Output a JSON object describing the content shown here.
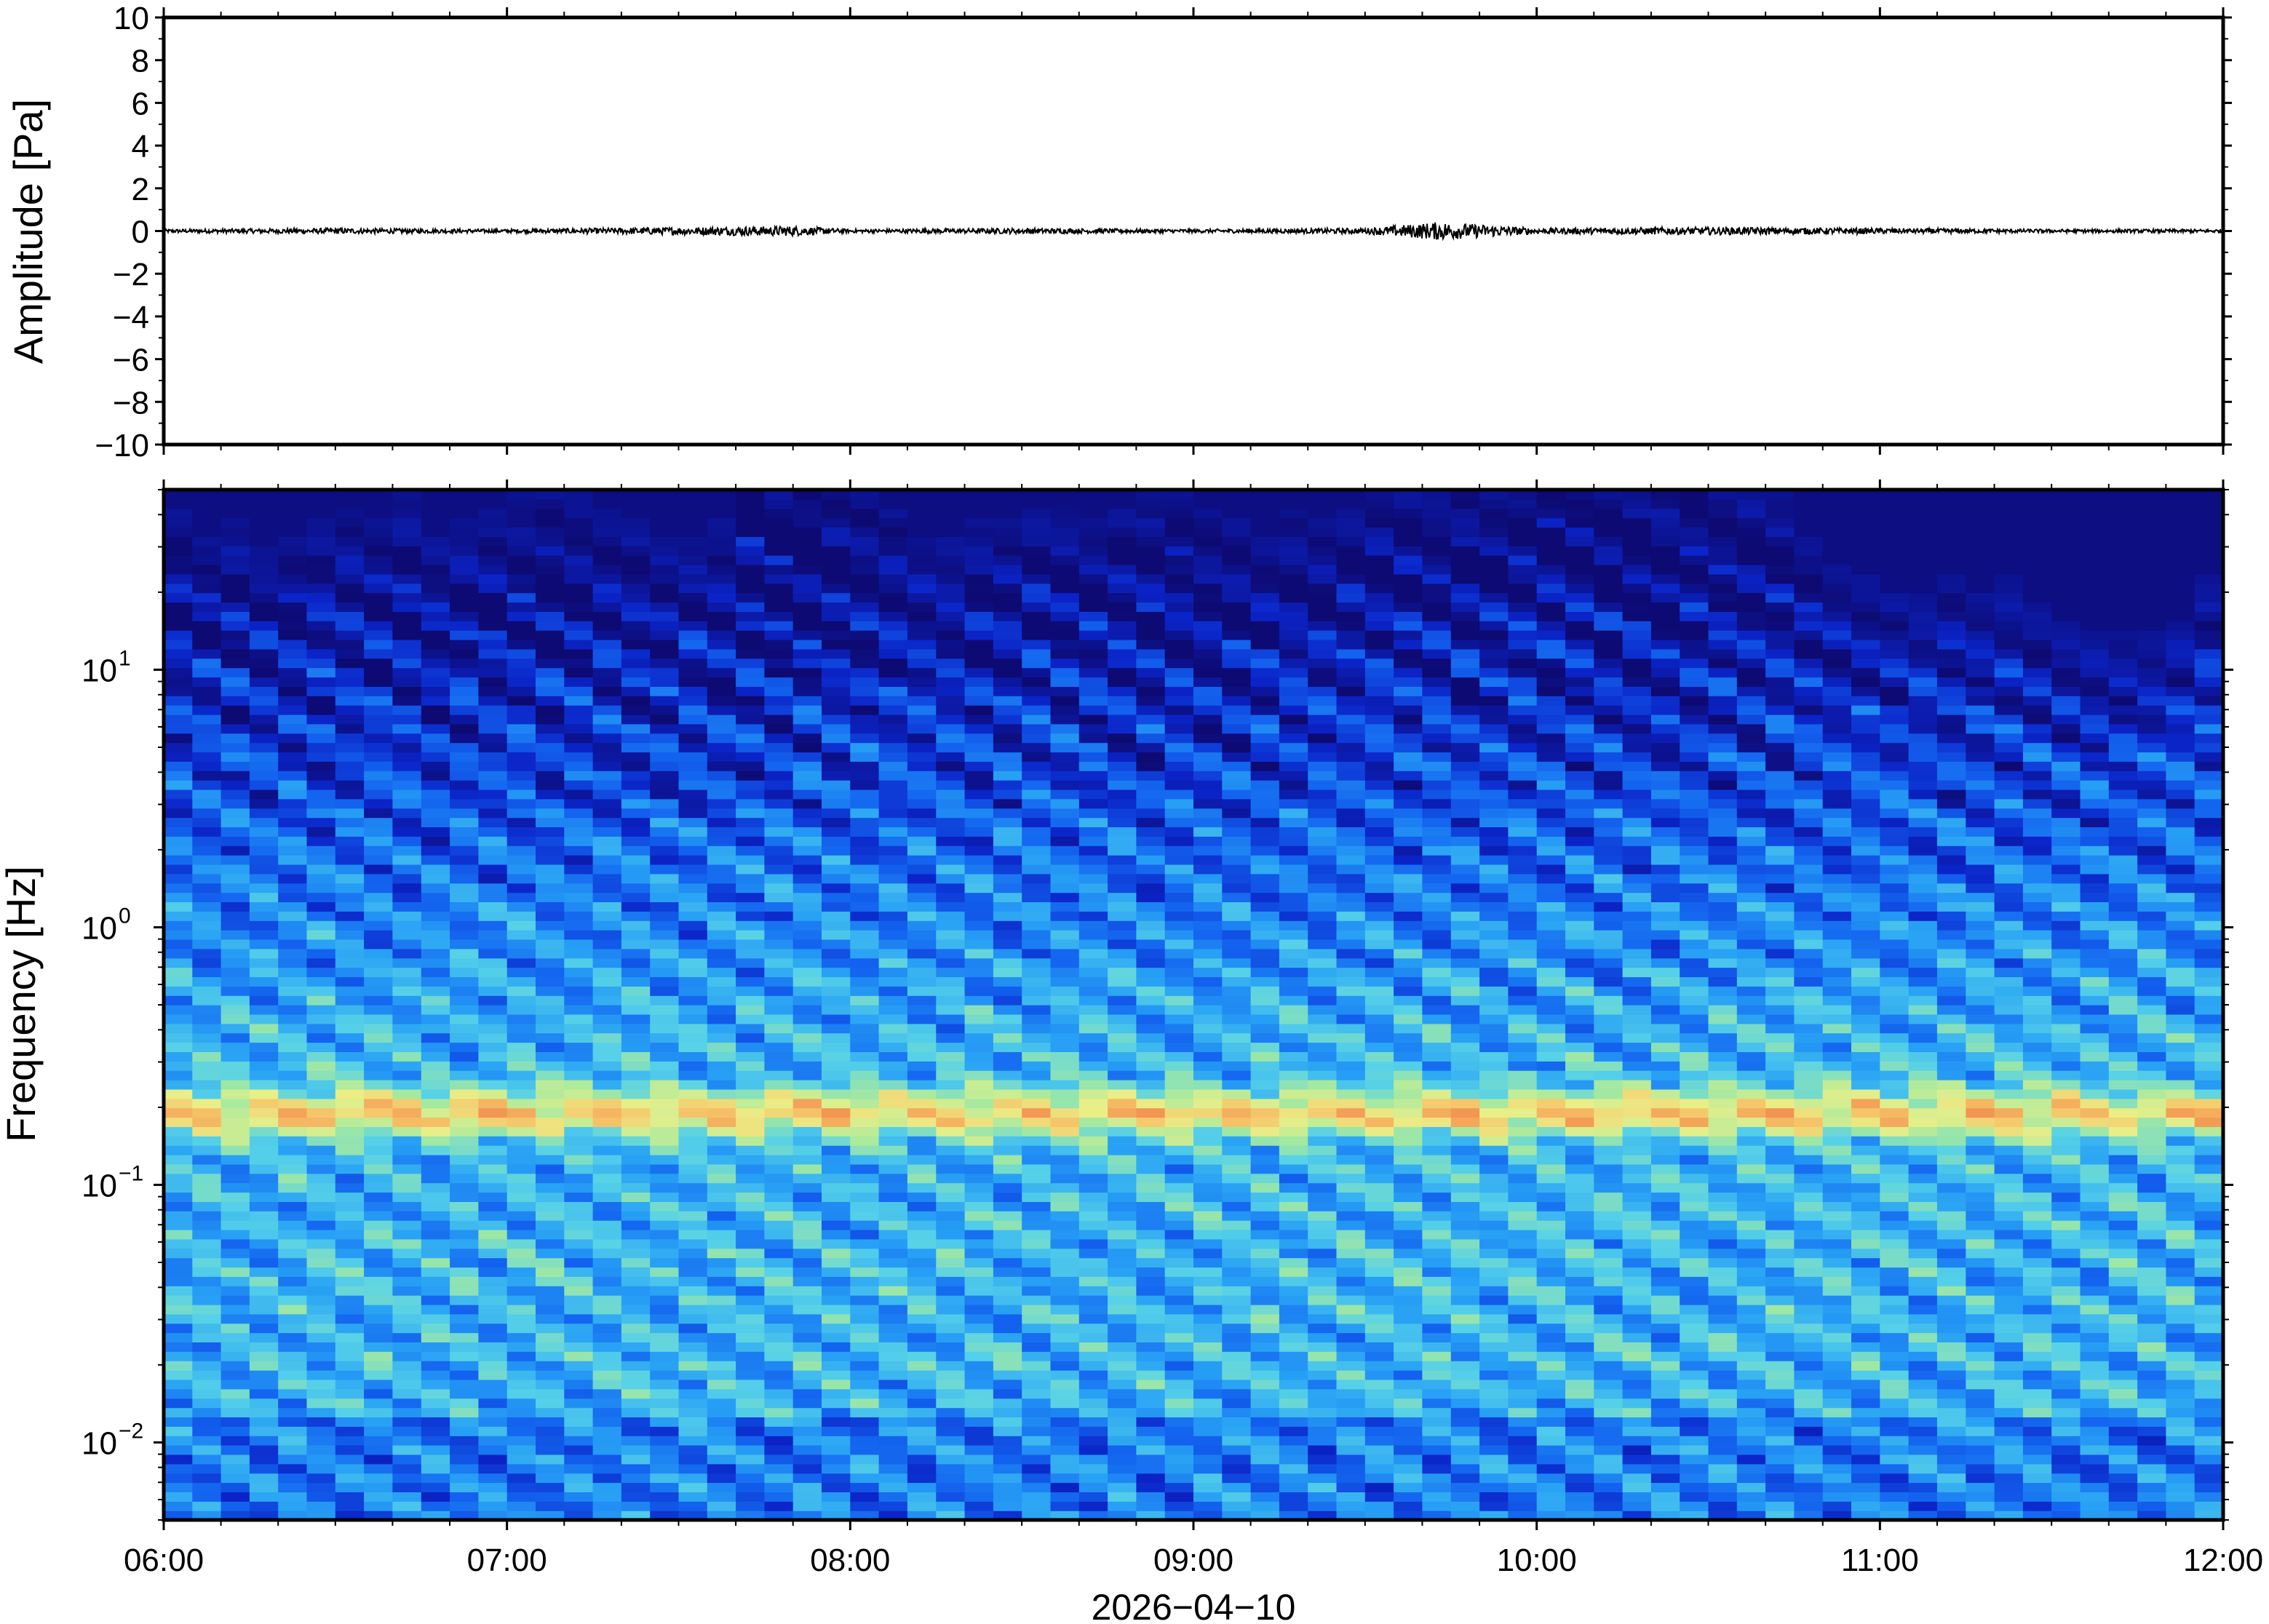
{
  "chart_data": [
    {
      "type": "line",
      "ylabel": "Amplitude [Pa]",
      "ylim": [
        -10,
        10
      ],
      "yticks": [
        10,
        8,
        6,
        4,
        2,
        0,
        -2,
        -4,
        -6,
        -8,
        -10
      ],
      "ytick_labels": [
        "10",
        "8",
        "6",
        "4",
        "2",
        "0",
        "−2",
        "−4",
        "−6",
        "−8",
        "−10"
      ],
      "xlim": [
        "06:00",
        "12:00"
      ],
      "series": [
        {
          "x": [
            "06:00",
            "06:30",
            "07:00",
            "07:30",
            "07:50",
            "08:00",
            "08:30",
            "09:00",
            "09:30",
            "09:43",
            "10:00",
            "10:30",
            "11:00",
            "11:30",
            "12:00"
          ],
          "values": [
            0.0,
            0.05,
            0.0,
            0.1,
            0.15,
            0.0,
            0.05,
            0.0,
            0.05,
            0.35,
            0.05,
            0.1,
            0.05,
            0.0,
            0.0
          ]
        }
      ],
      "line_color": "#000000",
      "grid": false
    },
    {
      "type": "heatmap",
      "ylabel": "Frequency [Hz]",
      "xlabel": "2026−04−10",
      "yscale": "log",
      "ylim": [
        0.005,
        50
      ],
      "yticks": [
        0.01,
        0.1,
        1,
        10
      ],
      "ytick_labels": [
        {
          "base": "10",
          "exp": "−2"
        },
        {
          "base": "10",
          "exp": "−1"
        },
        {
          "base": "10",
          "exp": "0"
        },
        {
          "base": "10",
          "exp": "1"
        }
      ],
      "xticks": [
        "06:00",
        "07:00",
        "08:00",
        "09:00",
        "10:00",
        "11:00",
        "12:00"
      ],
      "colormap": [
        "#0d0a73",
        "#0b24c8",
        "#1363ef",
        "#27a0f5",
        "#56d1e8",
        "#a4e9a0",
        "#eaef88",
        "#f6c267",
        "#f29552"
      ],
      "energy_band_hz": 0.19,
      "time_bins": 72
    }
  ]
}
